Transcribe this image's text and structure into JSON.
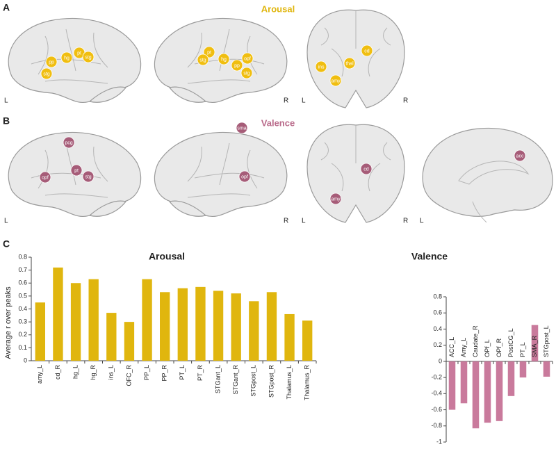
{
  "figure": {
    "panel_labels": [
      "A",
      "B",
      "C"
    ],
    "sides": [
      "L",
      "R"
    ],
    "arousal_spots": [
      "stg",
      "pp",
      "hg",
      "pt",
      "stg",
      "pt",
      "stg",
      "hg",
      "pp",
      "opf",
      "stg",
      "cd",
      "thal",
      "ins",
      "amy"
    ],
    "valence_spots": [
      "pcg",
      "opf",
      "pt",
      "stg",
      "sma",
      "opf",
      "cd",
      "amy",
      "acc"
    ]
  },
  "chart_data": [
    {
      "type": "bar",
      "title": "Arousal",
      "y_label": "Average r over peaks",
      "color": "#e0b60e",
      "categories": [
        "amy_L",
        "cd_R",
        "hg_L",
        "hg_R",
        "ins_L",
        "OFC_R",
        "PP_L",
        "PP_R",
        "PT_L",
        "PT_R",
        "STGant_L",
        "STGant_R",
        "STGpost_L",
        "STGpost_R",
        "Thalamus_L",
        "Thalamus_R"
      ],
      "values": [
        0.45,
        0.72,
        0.6,
        0.63,
        0.37,
        0.3,
        0.63,
        0.53,
        0.56,
        0.57,
        0.54,
        0.52,
        0.46,
        0.53,
        0.36,
        0.31
      ],
      "ylim": [
        0,
        0.8
      ],
      "yticks": [
        0,
        0.1,
        0.2,
        0.3,
        0.4,
        0.5,
        0.6,
        0.7,
        0.8
      ]
    },
    {
      "type": "bar",
      "title": "Valence",
      "color": "#c97a9c",
      "categories": [
        "ACC_L",
        "Amy_L",
        "Caudate_R",
        "OPf_L",
        "OPf_R",
        "PostCG_L",
        "PT_L",
        "SMA_R",
        "STGpost_L"
      ],
      "values": [
        -0.6,
        -0.52,
        -0.83,
        -0.76,
        -0.74,
        -0.43,
        -0.2,
        0.45,
        -0.19
      ],
      "ylim": [
        -1,
        0.8
      ],
      "yticks": [
        -1,
        -0.8,
        -0.6,
        -0.4,
        -0.2,
        0,
        0.2,
        0.4,
        0.6,
        0.8
      ]
    }
  ]
}
